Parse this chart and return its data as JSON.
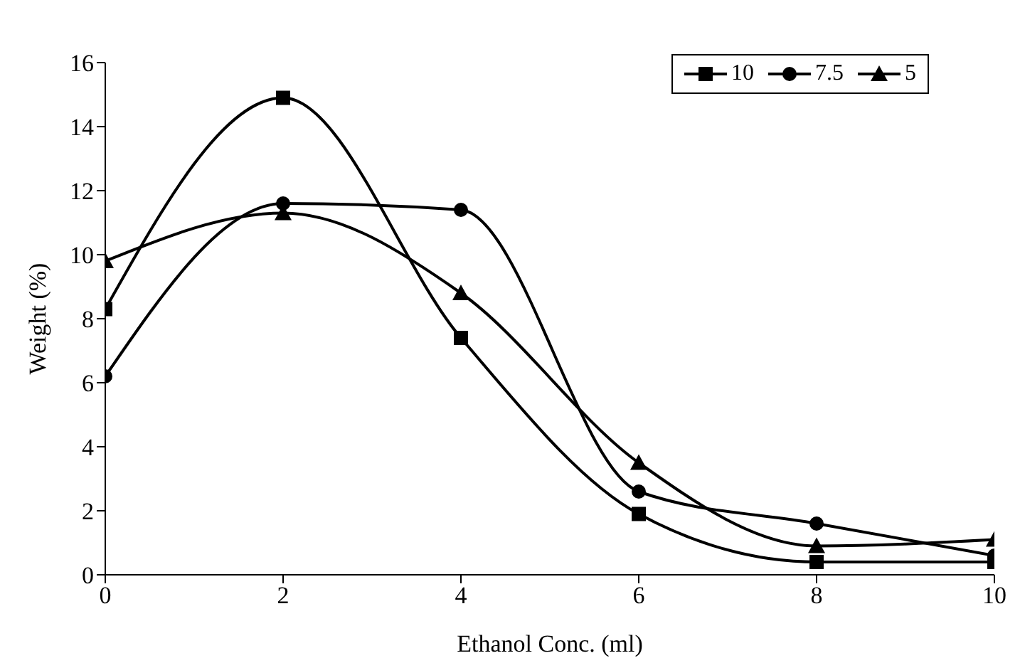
{
  "chart_data": {
    "type": "line",
    "xlabel": "Ethanol Conc.  (ml)",
    "ylabel": "Weight (%)",
    "x": [
      0,
      2,
      4,
      6,
      8,
      10
    ],
    "series": [
      {
        "name": "10",
        "color": "#000000",
        "marker": "square",
        "values": [
          8.3,
          14.9,
          7.4,
          1.9,
          0.4,
          0.4
        ]
      },
      {
        "name": "7.5",
        "color": "#000000",
        "marker": "circle",
        "values": [
          6.2,
          11.6,
          11.4,
          2.6,
          1.6,
          0.6
        ]
      },
      {
        "name": "5",
        "color": "#000000",
        "marker": "triangle",
        "values": [
          9.8,
          11.3,
          8.8,
          3.5,
          0.9,
          1.1
        ]
      }
    ],
    "xlim": [
      0,
      10
    ],
    "xticks": [
      0,
      2,
      4,
      6,
      8,
      10
    ],
    "ylim": [
      0,
      16
    ],
    "yticks": [
      0,
      2,
      4,
      6,
      8,
      10,
      12,
      14,
      16
    ],
    "grid": false,
    "legend": "top right",
    "line_style": "solid"
  }
}
